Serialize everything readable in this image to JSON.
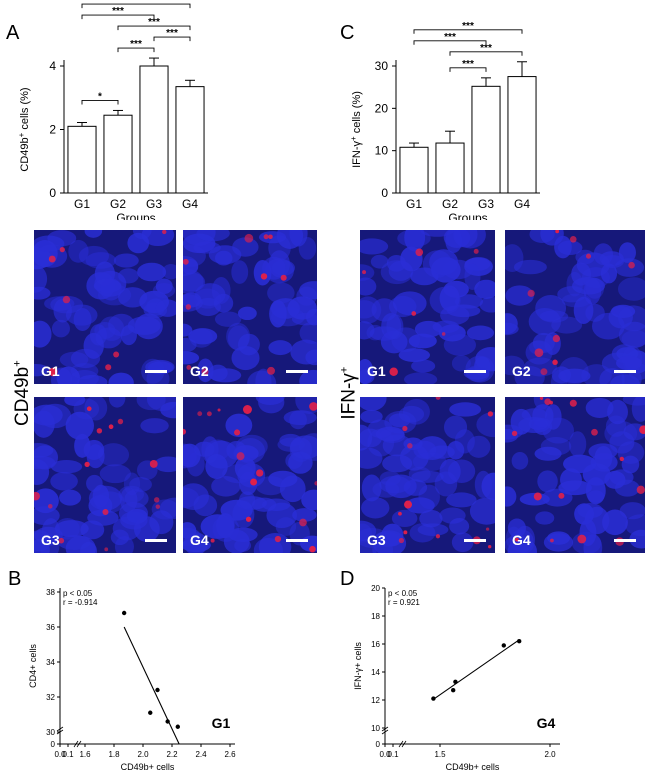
{
  "panels": {
    "A": "A",
    "B": "B",
    "C": "C",
    "D": "D"
  },
  "row_labels": {
    "cd49b": "CD49b",
    "cd49b_sup": "+",
    "ifn": "IFN-γ",
    "ifn_sup": "+"
  },
  "micro_labels": {
    "left": [
      "G1",
      "G2",
      "G3",
      "G4"
    ],
    "right": [
      "G1",
      "G2",
      "G3",
      "G4"
    ]
  },
  "colors": {
    "micro_bg": "#16187a",
    "nucleus": "#2a2ed6",
    "red_signal": "#e0204a"
  },
  "chart_data": [
    {
      "id": "A",
      "type": "bar",
      "categories": [
        "G1",
        "G2",
        "G3",
        "G4"
      ],
      "values": [
        2.1,
        2.45,
        4.0,
        3.35
      ],
      "errors": [
        0.12,
        0.15,
        0.25,
        0.2
      ],
      "xlabel": "Groups",
      "ylabel_main": "CD49b",
      "ylabel_sup": "+",
      "ylabel_rest": " cells (%)",
      "ylim": [
        0,
        4
      ],
      "yticks": [
        0,
        2,
        4
      ],
      "significance": [
        {
          "from": 0,
          "to": 1,
          "label": "*"
        },
        {
          "from": 1,
          "to": 3,
          "label": "***"
        },
        {
          "from": 1,
          "to": 2,
          "label": "***"
        },
        {
          "from": 2,
          "to": 3,
          "label": "***"
        },
        {
          "from": 0,
          "to": 2,
          "label": "***"
        },
        {
          "from": 0,
          "to": 3,
          "label": "***"
        }
      ]
    },
    {
      "id": "C",
      "type": "bar",
      "categories": [
        "G1",
        "G2",
        "G3",
        "G4"
      ],
      "values": [
        10.8,
        11.8,
        25.2,
        27.5
      ],
      "errors": [
        1.0,
        2.8,
        2.0,
        3.5
      ],
      "xlabel": "Groups",
      "ylabel_main": "IFN-γ",
      "ylabel_sup": "+",
      "ylabel_rest": " cells (%)",
      "ylim": [
        0,
        30
      ],
      "yticks": [
        0,
        10,
        20,
        30
      ],
      "significance": [
        {
          "from": 1,
          "to": 2,
          "label": "***"
        },
        {
          "from": 1,
          "to": 3,
          "label": "***"
        },
        {
          "from": 0,
          "to": 2,
          "label": "***"
        },
        {
          "from": 0,
          "to": 3,
          "label": "***"
        }
      ]
    },
    {
      "id": "B",
      "type": "scatter",
      "x": [
        1.87,
        2.05,
        2.1,
        2.17,
        2.24
      ],
      "y": [
        36.8,
        31.1,
        32.4,
        30.6,
        30.3
      ],
      "fit": {
        "x": [
          1.87,
          2.25
        ],
        "y": [
          36.0,
          29.3
        ]
      },
      "xlabel": "CD49b+ cells",
      "ylabel": "CD4+ cells",
      "xticks": [
        "0.0",
        "0.1",
        "1.6",
        "1.8",
        "2.0",
        "2.2",
        "2.4",
        "2.6"
      ],
      "yticks": [
        "0",
        "30",
        "32",
        "34",
        "36",
        "38"
      ],
      "annotation_p": "p < 0.05",
      "annotation_r": "r = -0.914",
      "group_label": "G1"
    },
    {
      "id": "D",
      "type": "scatter",
      "x": [
        1.47,
        1.56,
        1.57,
        1.79,
        1.86
      ],
      "y": [
        12.1,
        12.7,
        13.3,
        15.9,
        16.2
      ],
      "fit": {
        "x": [
          1.47,
          1.86
        ],
        "y": [
          12.05,
          16.3
        ]
      },
      "xlabel": "CD49b+ cells",
      "ylabel": "IFN-γ+ cells",
      "xticks": [
        "0.0",
        "0.1",
        "1.5",
        "2.0"
      ],
      "yticks": [
        "0",
        "10",
        "12",
        "14",
        "16",
        "18",
        "20"
      ],
      "annotation_p": "p < 0.05",
      "annotation_r": "r = 0.921",
      "group_label": "G4"
    }
  ]
}
